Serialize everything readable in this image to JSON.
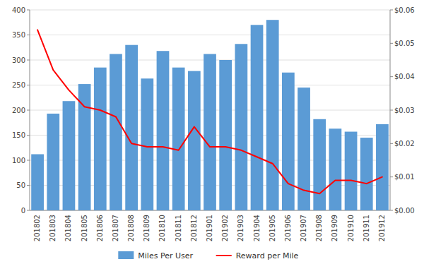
{
  "chart_data": {
    "type": "bar",
    "categories": [
      "201802",
      "201803",
      "201804",
      "201805",
      "201806",
      "201807",
      "201808",
      "201809",
      "201810",
      "201811",
      "201812",
      "201901",
      "201902",
      "201903",
      "201904",
      "201905",
      "201906",
      "201907",
      "201908",
      "201909",
      "201910",
      "201911",
      "201912"
    ],
    "series": [
      {
        "name": "Miles Per User",
        "type": "bar",
        "color": "#5b9bd5",
        "values": [
          112,
          193,
          218,
          252,
          285,
          312,
          330,
          263,
          318,
          285,
          278,
          312,
          300,
          332,
          370,
          380,
          275,
          245,
          182,
          163,
          157,
          145,
          172
        ]
      },
      {
        "name": "Reward per Mile",
        "type": "line",
        "color": "#ff0000",
        "axis": "y2",
        "values": [
          0.054,
          0.042,
          0.036,
          0.031,
          0.03,
          0.028,
          0.02,
          0.019,
          0.019,
          0.018,
          0.025,
          0.019,
          0.019,
          0.018,
          0.016,
          0.014,
          0.008,
          0.006,
          0.005,
          0.009,
          0.009,
          0.008,
          0.01
        ]
      }
    ],
    "ylim": [
      0,
      400
    ],
    "yticks": [
      0,
      50,
      100,
      150,
      200,
      250,
      300,
      350,
      400
    ],
    "y2lim": [
      0.0,
      0.06
    ],
    "y2ticks": [
      {
        "value": 0.0,
        "label": "$0.00"
      },
      {
        "value": 0.01,
        "label": "$0.01"
      },
      {
        "value": 0.02,
        "label": "$0.02"
      },
      {
        "value": 0.03,
        "label": "$0.03"
      },
      {
        "value": 0.04,
        "label": "$0.04"
      },
      {
        "value": 0.05,
        "label": "$0.05"
      },
      {
        "value": 0.06,
        "label": "$0.06"
      }
    ],
    "grid": true,
    "legend": "bottom"
  }
}
